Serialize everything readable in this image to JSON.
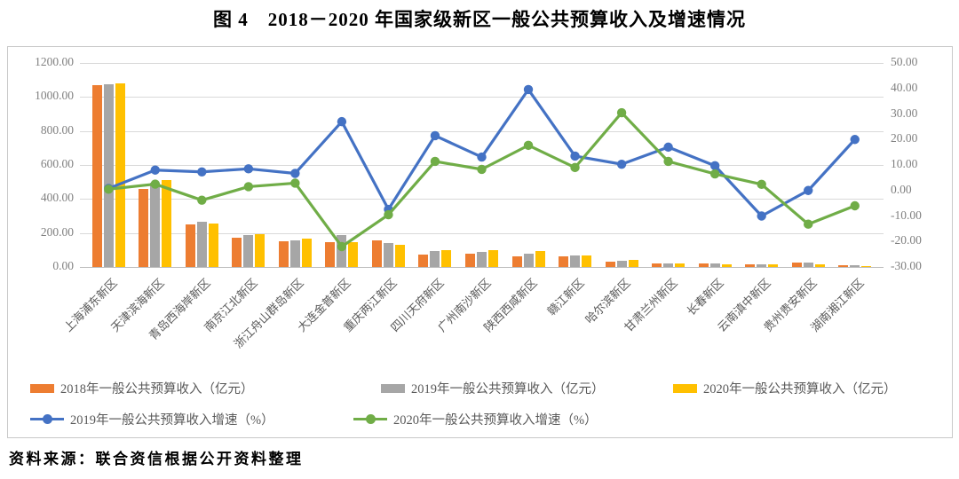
{
  "title": "图 4　2018－2020 年国家级新区一般公共预算收入及增速情况",
  "source": "资料来源：联合资信根据公开资料整理",
  "colors": {
    "bar2018": "#ED7D31",
    "bar2019": "#A6A6A6",
    "bar2020": "#FFC000",
    "line2019": "#4472C4",
    "line2020": "#70AD47",
    "grid": "#d9d9d9",
    "axis_text": "#808080"
  },
  "chart_data": {
    "type": "bar",
    "subtype": "combo-bar-line-dual-axis",
    "categories": [
      "上海浦东新区",
      "天津滨海新区",
      "青岛西海岸新区",
      "南京江北新区",
      "浙江舟山群岛新区",
      "大连金普新区",
      "重庆两江新区",
      "四川天府新区",
      "广州南沙新区",
      "陕西西咸新区",
      "赣江新区",
      "哈尔滨新区",
      "甘肃兰州新区",
      "长春新区",
      "云南滇中新区",
      "贵州贵安新区",
      "湖南湘江新区"
    ],
    "series": [
      {
        "name": "2018年一般公共预算收入（亿元）",
        "type": "bar",
        "axis": "left",
        "color": "#ED7D31",
        "values": [
          1072,
          460,
          250,
          172,
          150,
          147,
          155,
          75,
          77,
          62,
          62,
          31,
          19,
          22,
          16,
          25,
          8
        ]
      },
      {
        "name": "2019年一般公共预算收入（亿元）",
        "type": "bar",
        "axis": "left",
        "color": "#A6A6A6",
        "values": [
          1077,
          495,
          268,
          187,
          157,
          190,
          143,
          92,
          90,
          77,
          66,
          36,
          22,
          19,
          17,
          27,
          12
        ]
      },
      {
        "name": "2020年一般公共预算收入（亿元）",
        "type": "bar",
        "axis": "left",
        "color": "#FFC000",
        "values": [
          1080,
          512,
          258,
          192,
          168,
          148,
          128,
          99,
          98,
          92,
          67,
          41,
          22,
          18,
          15,
          18,
          6
        ]
      },
      {
        "name": "2019年一般公共预算收入增速（%）",
        "type": "line",
        "axis": "right",
        "color": "#4472C4",
        "values": [
          0.8,
          8.0,
          7.3,
          8.5,
          6.7,
          27.0,
          -7.4,
          21.5,
          13.1,
          39.6,
          13.5,
          10.3,
          17.0,
          9.7,
          -10.0,
          0.0,
          20.0
        ]
      },
      {
        "name": "2020年一般公共预算收入增速（%）",
        "type": "line",
        "axis": "right",
        "color": "#70AD47",
        "values": [
          0.5,
          2.5,
          -3.8,
          1.5,
          2.9,
          -22.0,
          -9.5,
          11.4,
          8.3,
          17.7,
          9.0,
          30.5,
          11.4,
          6.5,
          2.4,
          -13.2,
          -6.0
        ]
      }
    ],
    "left_axis": {
      "min": 0,
      "max": 1200,
      "step": 200,
      "labels": [
        "0.00",
        "200.00",
        "400.00",
        "600.00",
        "800.00",
        "1000.00",
        "1200.00"
      ]
    },
    "right_axis": {
      "min": -30,
      "max": 50,
      "step": 10,
      "labels": [
        "-30.00",
        "-20.00",
        "-10.00",
        "0.00",
        "10.00",
        "20.00",
        "30.00",
        "40.00",
        "50.00"
      ]
    },
    "grid": true,
    "legend_position": "bottom"
  }
}
